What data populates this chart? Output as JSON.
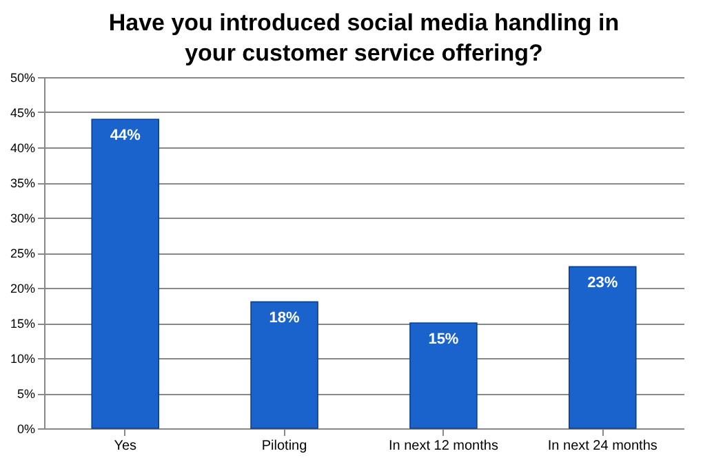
{
  "chart_data": {
    "type": "bar",
    "title": "Have you introduced social media handling in\nyour customer service offering?",
    "categories": [
      "Yes",
      "Piloting",
      "In next 12 months",
      "In next 24 months"
    ],
    "values": [
      44,
      18,
      15,
      23
    ],
    "value_labels": [
      "44%",
      "18%",
      "15%",
      "23%"
    ],
    "color": "#1a63cc",
    "ylim": [
      0,
      50
    ],
    "yticks": [
      {
        "value": 0,
        "label": "0%"
      },
      {
        "value": 5,
        "label": "5%"
      },
      {
        "value": 10,
        "label": "10%"
      },
      {
        "value": 15,
        "label": "15%"
      },
      {
        "value": 20,
        "label": "20%"
      },
      {
        "value": 25,
        "label": "25%"
      },
      {
        "value": 30,
        "label": "30%"
      },
      {
        "value": 35,
        "label": "35%"
      },
      {
        "value": 40,
        "label": "40%"
      },
      {
        "value": 45,
        "label": "45%"
      },
      {
        "value": 50,
        "label": "50%"
      }
    ],
    "grid": "y"
  }
}
